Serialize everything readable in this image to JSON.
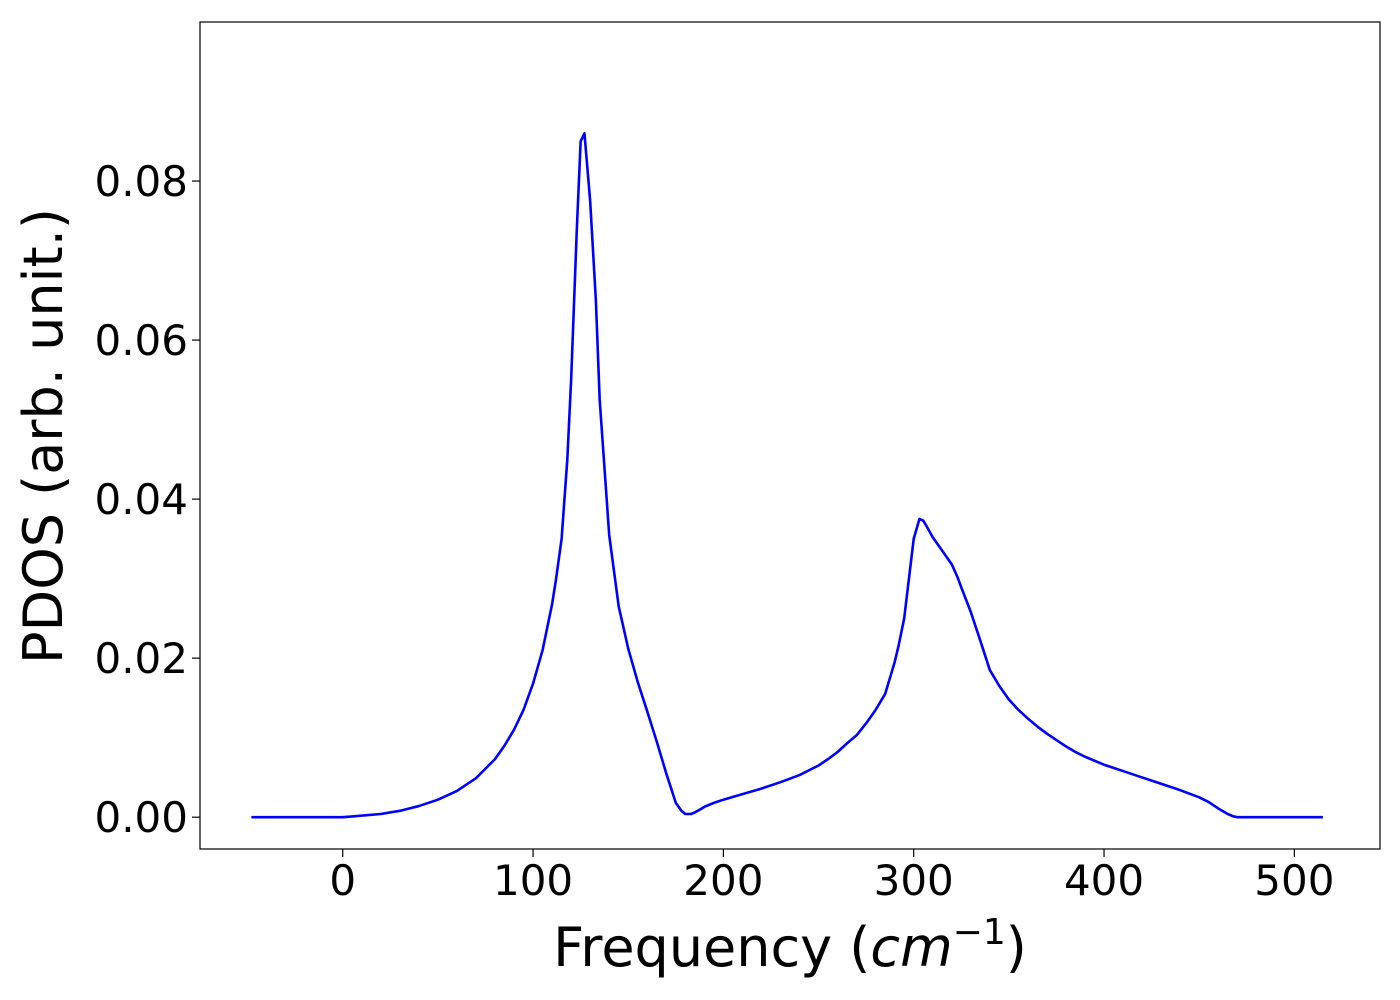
{
  "chart_data": {
    "type": "line",
    "title": "",
    "xlabel": "Frequency",
    "xlabel_unit_base": "cm",
    "xlabel_unit_exp": "−1",
    "ylabel": "PDOS (arb. unit.)",
    "xlim": [
      -75,
      545
    ],
    "ylim": [
      -0.004,
      0.1
    ],
    "xticks": [
      0,
      100,
      200,
      300,
      400,
      500
    ],
    "xtick_labels": [
      "0",
      "100",
      "200",
      "300",
      "400",
      "500"
    ],
    "yticks": [
      0.0,
      0.02,
      0.04,
      0.06,
      0.08
    ],
    "ytick_labels": [
      "0.00",
      "0.02",
      "0.04",
      "0.06",
      "0.08"
    ],
    "grid": false,
    "legend": false,
    "series": [
      {
        "color": "#0000ff",
        "x": [
          -48,
          0,
          5,
          20,
          30,
          40,
          50,
          60,
          70,
          80,
          85,
          90,
          95,
          100,
          105,
          110,
          112,
          115,
          118,
          120,
          123,
          125,
          127,
          130,
          133,
          135,
          140,
          145,
          150,
          155,
          160,
          165,
          170,
          175,
          178,
          180,
          183,
          185,
          188,
          190,
          195,
          200,
          210,
          220,
          230,
          240,
          250,
          255,
          260,
          265,
          270,
          275,
          280,
          285,
          290,
          292,
          295,
          298,
          300,
          303,
          305,
          307,
          310,
          315,
          320,
          323,
          325,
          330,
          335,
          340,
          345,
          350,
          355,
          360,
          365,
          370,
          375,
          380,
          385,
          390,
          395,
          400,
          405,
          410,
          420,
          430,
          440,
          450,
          455,
          460,
          465,
          468,
          470,
          473,
          475,
          480,
          500,
          515
        ],
        "y": [
          0.0,
          0.0,
          0.0001,
          0.0004,
          0.0008,
          0.0014,
          0.0022,
          0.0033,
          0.0049,
          0.0073,
          0.009,
          0.011,
          0.0135,
          0.0168,
          0.021,
          0.0268,
          0.0298,
          0.035,
          0.045,
          0.055,
          0.074,
          0.085,
          0.086,
          0.0775,
          0.065,
          0.0525,
          0.0355,
          0.0265,
          0.0212,
          0.017,
          0.0133,
          0.0095,
          0.0055,
          0.0018,
          0.0008,
          0.0004,
          0.0004,
          0.0006,
          0.001,
          0.0013,
          0.0018,
          0.0022,
          0.0029,
          0.0036,
          0.0044,
          0.0053,
          0.0065,
          0.0073,
          0.0082,
          0.0093,
          0.0103,
          0.0118,
          0.0135,
          0.0155,
          0.0195,
          0.0215,
          0.025,
          0.031,
          0.035,
          0.0375,
          0.0373,
          0.0365,
          0.0352,
          0.0335,
          0.0318,
          0.0302,
          0.0289,
          0.0258,
          0.0222,
          0.0185,
          0.0165,
          0.0148,
          0.0135,
          0.0124,
          0.0114,
          0.0105,
          0.0097,
          0.0089,
          0.0082,
          0.0076,
          0.0071,
          0.0066,
          0.0062,
          0.0058,
          0.005,
          0.0042,
          0.0034,
          0.0025,
          0.0019,
          0.0011,
          0.0004,
          0.0001,
          0.0,
          0.0,
          0.0,
          0.0,
          0.0,
          0.0
        ]
      }
    ]
  }
}
